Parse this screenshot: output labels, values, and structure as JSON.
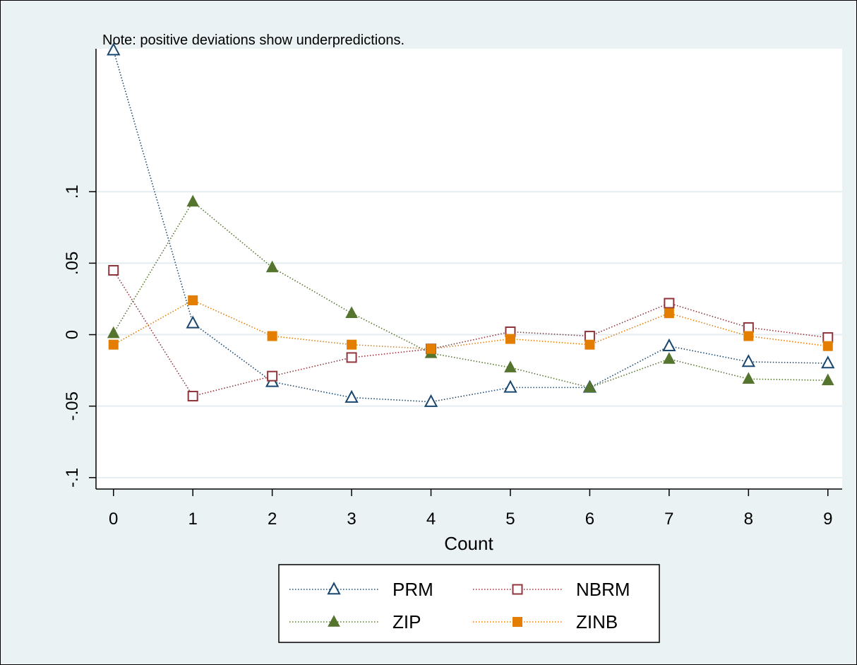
{
  "chart_data": {
    "type": "line",
    "note": "Note: positive deviations show underpredictions.",
    "xlabel": "Count",
    "ylabel": "",
    "x": [
      0,
      1,
      2,
      3,
      4,
      5,
      6,
      7,
      8,
      9
    ],
    "x_ticks": [
      "0",
      "1",
      "2",
      "3",
      "4",
      "5",
      "6",
      "7",
      "8",
      "9"
    ],
    "y_ticks": [
      {
        "value": -0.1,
        "label": "-.1"
      },
      {
        "value": -0.05,
        "label": "-.05"
      },
      {
        "value": 0,
        "label": "0"
      },
      {
        "value": 0.05,
        "label": ".05"
      },
      {
        "value": 0.1,
        "label": ".1"
      }
    ],
    "ylim": [
      -0.108,
      0.2
    ],
    "xlim": [
      -0.22,
      9.18
    ],
    "grid": true,
    "legend_position": "bottom",
    "series": [
      {
        "name": "PRM",
        "color": "#1a476f",
        "marker": "triangle-hollow",
        "values": [
          0.199,
          0.008,
          -0.033,
          -0.044,
          -0.047,
          -0.037,
          -0.037,
          -0.008,
          -0.019,
          -0.02
        ]
      },
      {
        "name": "NBRM",
        "color": "#90353b",
        "marker": "square-hollow",
        "values": [
          0.045,
          -0.043,
          -0.029,
          -0.016,
          -0.01,
          0.002,
          -0.001,
          0.022,
          0.005,
          -0.002
        ]
      },
      {
        "name": "ZIP",
        "color": "#55752f",
        "marker": "triangle-filled",
        "values": [
          0.001,
          0.093,
          0.047,
          0.015,
          -0.013,
          -0.023,
          -0.037,
          -0.017,
          -0.031,
          -0.032
        ]
      },
      {
        "name": "ZINB",
        "color": "#e37e00",
        "marker": "square-filled",
        "values": [
          -0.007,
          0.024,
          -0.001,
          -0.007,
          -0.01,
          -0.003,
          -0.007,
          0.015,
          -0.001,
          -0.008
        ]
      }
    ]
  }
}
